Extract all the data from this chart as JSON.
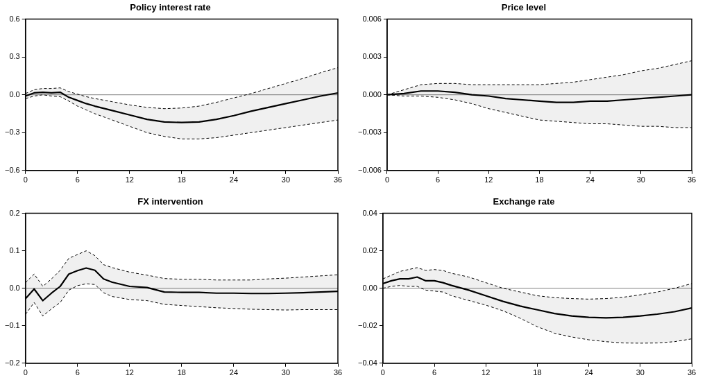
{
  "chart_data": [
    {
      "type": "line",
      "title": "Policy interest rate",
      "xlim": [
        0,
        36
      ],
      "xticks": [
        0,
        6,
        12,
        18,
        24,
        30,
        36
      ],
      "ylim": [
        -0.6,
        0.6
      ],
      "yticks": [
        {
          "value": -0.6,
          "label": "−0.6"
        },
        {
          "value": -0.3,
          "label": "−0.3"
        },
        {
          "value": 0,
          "label": "0.0"
        },
        0.3,
        0.6
      ],
      "grid": false,
      "legend": false,
      "ref_lines": [
        {
          "axis": "y",
          "value": 0,
          "color": "#808080"
        }
      ],
      "series": [
        {
          "color": "#000000",
          "line_style": "solid",
          "x": [
            0,
            1,
            2,
            3,
            4,
            5,
            6,
            7,
            8,
            10,
            12,
            14,
            16,
            18,
            20,
            22,
            24,
            26,
            28,
            30,
            32,
            34,
            36
          ],
          "values": [
            -0.01,
            0.015,
            0.02,
            0.015,
            0.02,
            -0.02,
            -0.045,
            -0.07,
            -0.09,
            -0.125,
            -0.16,
            -0.195,
            -0.215,
            -0.22,
            -0.215,
            -0.195,
            -0.165,
            -0.13,
            -0.1,
            -0.07,
            -0.04,
            -0.01,
            0.015
          ],
          "upper": [
            0.01,
            0.04,
            0.05,
            0.05,
            0.055,
            0.025,
            0.005,
            -0.015,
            -0.03,
            -0.055,
            -0.08,
            -0.1,
            -0.11,
            -0.105,
            -0.09,
            -0.06,
            -0.025,
            0.01,
            0.05,
            0.09,
            0.13,
            0.175,
            0.215
          ],
          "lower": [
            -0.03,
            -0.01,
            0,
            -0.01,
            -0.015,
            -0.05,
            -0.09,
            -0.12,
            -0.15,
            -0.2,
            -0.25,
            -0.3,
            -0.33,
            -0.35,
            -0.35,
            -0.34,
            -0.32,
            -0.3,
            -0.28,
            -0.26,
            -0.24,
            -0.22,
            -0.2
          ]
        },
        {
          "color": "#000000",
          "line_style": "dashed",
          "x": [
            0,
            1,
            2,
            3,
            4,
            5,
            6,
            7,
            8,
            10,
            12,
            14,
            16,
            18,
            20,
            22,
            24,
            26,
            28,
            30,
            32,
            34,
            36
          ],
          "values": [
            0.01,
            0.04,
            0.05,
            0.05,
            0.055,
            0.025,
            0.005,
            -0.015,
            -0.03,
            -0.055,
            -0.08,
            -0.1,
            -0.11,
            -0.105,
            -0.09,
            -0.06,
            -0.025,
            0.01,
            0.05,
            0.09,
            0.13,
            0.175,
            0.215
          ]
        },
        {
          "color": "#000000",
          "line_style": "dashed",
          "x": [
            0,
            1,
            2,
            3,
            4,
            5,
            6,
            7,
            8,
            10,
            12,
            14,
            16,
            18,
            20,
            22,
            24,
            26,
            28,
            30,
            32,
            34,
            36
          ],
          "values": [
            -0.03,
            -0.01,
            0,
            -0.01,
            -0.015,
            -0.05,
            -0.09,
            -0.12,
            -0.15,
            -0.2,
            -0.25,
            -0.3,
            -0.33,
            -0.35,
            -0.35,
            -0.34,
            -0.32,
            -0.3,
            -0.28,
            -0.26,
            -0.24,
            -0.22,
            -0.2
          ]
        }
      ]
    },
    {
      "type": "line",
      "title": "Price level",
      "xlim": [
        0,
        36
      ],
      "xticks": [
        0,
        6,
        12,
        18,
        24,
        30,
        36
      ],
      "ylim": [
        -0.006,
        0.006
      ],
      "yticks": [
        {
          "value": -0.006,
          "label": "−0.006"
        },
        {
          "value": -0.003,
          "label": "−0.003"
        },
        {
          "value": 0,
          "label": "0.000"
        },
        0.003,
        0.006
      ],
      "grid": false,
      "legend": false,
      "ref_lines": [
        {
          "axis": "y",
          "value": 0,
          "color": "#808080"
        }
      ],
      "series": [
        {
          "color": "#000000",
          "line_style": "solid",
          "x": [
            0,
            2,
            4,
            6,
            8,
            10,
            12,
            14,
            16,
            18,
            20,
            22,
            24,
            26,
            28,
            30,
            32,
            34,
            36
          ],
          "values": [
            0,
            0.0001,
            0.0003,
            0.0003,
            0.0002,
            0,
            -0.0001,
            -0.0003,
            -0.0004,
            -0.0005,
            -0.0006,
            -0.0006,
            -0.0005,
            -0.0005,
            -0.0004,
            -0.0003,
            -0.0002,
            -0.0001,
            0
          ],
          "upper": [
            0,
            0.0004,
            0.0008,
            0.0009,
            0.0009,
            0.0008,
            0.0008,
            0.0008,
            0.0008,
            0.0008,
            0.0009,
            0.001,
            0.0012,
            0.0014,
            0.0016,
            0.0019,
            0.0021,
            0.0024,
            0.0027
          ],
          "lower": [
            0,
            -0.0001,
            -0.0001,
            -0.0002,
            -0.0004,
            -0.0007,
            -0.0011,
            -0.0014,
            -0.0017,
            -0.002,
            -0.0021,
            -0.0022,
            -0.0023,
            -0.0023,
            -0.0024,
            -0.0025,
            -0.0025,
            -0.0026,
            -0.0026
          ]
        },
        {
          "color": "#000000",
          "line_style": "dashed",
          "x": [
            0,
            2,
            4,
            6,
            8,
            10,
            12,
            14,
            16,
            18,
            20,
            22,
            24,
            26,
            28,
            30,
            32,
            34,
            36
          ],
          "values": [
            0,
            0.0004,
            0.0008,
            0.0009,
            0.0009,
            0.0008,
            0.0008,
            0.0008,
            0.0008,
            0.0008,
            0.0009,
            0.001,
            0.0012,
            0.0014,
            0.0016,
            0.0019,
            0.0021,
            0.0024,
            0.0027
          ]
        },
        {
          "color": "#000000",
          "line_style": "dashed",
          "x": [
            0,
            2,
            4,
            6,
            8,
            10,
            12,
            14,
            16,
            18,
            20,
            22,
            24,
            26,
            28,
            30,
            32,
            34,
            36
          ],
          "values": [
            0,
            -0.0001,
            -0.0001,
            -0.0002,
            -0.0004,
            -0.0007,
            -0.0011,
            -0.0014,
            -0.0017,
            -0.002,
            -0.0021,
            -0.0022,
            -0.0023,
            -0.0023,
            -0.0024,
            -0.0025,
            -0.0025,
            -0.0026,
            -0.0026
          ]
        }
      ]
    },
    {
      "type": "line",
      "title": "FX intervention",
      "xlim": [
        0,
        36
      ],
      "xticks": [
        0,
        6,
        12,
        18,
        24,
        30,
        36
      ],
      "ylim": [
        -0.2,
        0.2
      ],
      "yticks": [
        {
          "value": -0.2,
          "label": "−0.2"
        },
        {
          "value": -0.1,
          "label": "−0.1"
        },
        {
          "value": 0,
          "label": "0.0"
        },
        0.1,
        0.2
      ],
      "grid": false,
      "legend": false,
      "ref_lines": [
        {
          "axis": "y",
          "value": 0,
          "color": "#808080"
        }
      ],
      "series": [
        {
          "color": "#000000",
          "line_style": "solid",
          "x": [
            0,
            1,
            2,
            3,
            4,
            5,
            6,
            7,
            8,
            9,
            10,
            12,
            14,
            16,
            18,
            20,
            22,
            24,
            26,
            28,
            30,
            32,
            34,
            36
          ],
          "values": [
            -0.028,
            -0.002,
            -0.033,
            -0.013,
            0.005,
            0.038,
            0.047,
            0.054,
            0.048,
            0.025,
            0.016,
            0.005,
            0.002,
            -0.01,
            -0.011,
            -0.011,
            -0.013,
            -0.013,
            -0.014,
            -0.014,
            -0.013,
            -0.012,
            -0.01,
            -0.008
          ],
          "upper": [
            0.015,
            0.038,
            0.005,
            0.025,
            0.048,
            0.08,
            0.09,
            0.1,
            0.087,
            0.063,
            0.055,
            0.043,
            0.035,
            0.026,
            0.024,
            0.024,
            0.022,
            0.022,
            0.022,
            0.025,
            0.027,
            0.03,
            0.033,
            0.036
          ],
          "lower": [
            -0.07,
            -0.038,
            -0.074,
            -0.055,
            -0.038,
            -0.005,
            0.007,
            0.012,
            0.01,
            -0.012,
            -0.022,
            -0.03,
            -0.033,
            -0.043,
            -0.046,
            -0.049,
            -0.052,
            -0.054,
            -0.056,
            -0.057,
            -0.058,
            -0.057,
            -0.057,
            -0.057
          ]
        },
        {
          "color": "#000000",
          "line_style": "dashed",
          "x": [
            0,
            1,
            2,
            3,
            4,
            5,
            6,
            7,
            8,
            9,
            10,
            12,
            14,
            16,
            18,
            20,
            22,
            24,
            26,
            28,
            30,
            32,
            34,
            36
          ],
          "values": [
            0.015,
            0.038,
            0.005,
            0.025,
            0.048,
            0.08,
            0.09,
            0.1,
            0.087,
            0.063,
            0.055,
            0.043,
            0.035,
            0.026,
            0.024,
            0.024,
            0.022,
            0.022,
            0.022,
            0.025,
            0.027,
            0.03,
            0.033,
            0.036
          ]
        },
        {
          "color": "#000000",
          "line_style": "dashed",
          "x": [
            0,
            1,
            2,
            3,
            4,
            5,
            6,
            7,
            8,
            9,
            10,
            12,
            14,
            16,
            18,
            20,
            22,
            24,
            26,
            28,
            30,
            32,
            34,
            36
          ],
          "values": [
            -0.07,
            -0.038,
            -0.074,
            -0.055,
            -0.038,
            -0.005,
            0.007,
            0.012,
            0.01,
            -0.012,
            -0.022,
            -0.03,
            -0.033,
            -0.043,
            -0.046,
            -0.049,
            -0.052,
            -0.054,
            -0.056,
            -0.057,
            -0.058,
            -0.057,
            -0.057,
            -0.057
          ]
        }
      ]
    },
    {
      "type": "line",
      "title": "Exchange rate",
      "xlim": [
        0,
        36
      ],
      "xticks": [
        0,
        6,
        12,
        18,
        24,
        30,
        36
      ],
      "ylim": [
        -0.04,
        0.04
      ],
      "yticks": [
        {
          "value": -0.04,
          "label": "−0.04"
        },
        {
          "value": -0.02,
          "label": "−0.02"
        },
        {
          "value": 0,
          "label": "0.00"
        },
        0.02,
        0.04
      ],
      "grid": false,
      "legend": false,
      "ref_lines": [
        {
          "axis": "y",
          "value": 0,
          "color": "#808080"
        }
      ],
      "series": [
        {
          "color": "#000000",
          "line_style": "solid",
          "x": [
            0,
            1,
            2,
            3,
            4,
            5,
            6,
            7,
            8,
            10,
            12,
            14,
            16,
            18,
            20,
            22,
            24,
            26,
            28,
            30,
            32,
            34,
            36
          ],
          "values": [
            0.0025,
            0.004,
            0.005,
            0.005,
            0.006,
            0.004,
            0.004,
            0.003,
            0.0015,
            -0.001,
            -0.004,
            -0.007,
            -0.0095,
            -0.0115,
            -0.0135,
            -0.0148,
            -0.0155,
            -0.0158,
            -0.0155,
            -0.0148,
            -0.0138,
            -0.0125,
            -0.0105
          ],
          "upper": [
            0.005,
            0.007,
            0.009,
            0.01,
            0.011,
            0.0095,
            0.01,
            0.0095,
            0.008,
            0.006,
            0.003,
            0,
            -0.002,
            -0.004,
            -0.005,
            -0.0055,
            -0.0058,
            -0.0055,
            -0.0048,
            -0.0035,
            -0.002,
            0,
            0.0025
          ],
          "lower": [
            0,
            0.001,
            0.0015,
            0.001,
            0.001,
            -0.001,
            -0.0015,
            -0.002,
            -0.004,
            -0.0065,
            -0.009,
            -0.012,
            -0.016,
            -0.0205,
            -0.024,
            -0.026,
            -0.0275,
            -0.0285,
            -0.0292,
            -0.0293,
            -0.0292,
            -0.0285,
            -0.027
          ]
        },
        {
          "color": "#000000",
          "line_style": "dashed",
          "x": [
            0,
            1,
            2,
            3,
            4,
            5,
            6,
            7,
            8,
            10,
            12,
            14,
            16,
            18,
            20,
            22,
            24,
            26,
            28,
            30,
            32,
            34,
            36
          ],
          "values": [
            0.005,
            0.007,
            0.009,
            0.01,
            0.011,
            0.0095,
            0.01,
            0.0095,
            0.008,
            0.006,
            0.003,
            0,
            -0.002,
            -0.004,
            -0.005,
            -0.0055,
            -0.0058,
            -0.0055,
            -0.0048,
            -0.0035,
            -0.002,
            0,
            0.0025
          ]
        },
        {
          "color": "#000000",
          "line_style": "dashed",
          "x": [
            0,
            1,
            2,
            3,
            4,
            5,
            6,
            7,
            8,
            10,
            12,
            14,
            16,
            18,
            20,
            22,
            24,
            26,
            28,
            30,
            32,
            34,
            36
          ],
          "values": [
            0,
            0.001,
            0.0015,
            0.001,
            0.001,
            -0.001,
            -0.0015,
            -0.002,
            -0.004,
            -0.0065,
            -0.009,
            -0.012,
            -0.016,
            -0.0205,
            -0.024,
            -0.026,
            -0.0275,
            -0.0285,
            -0.0292,
            -0.0293,
            -0.0292,
            -0.0285,
            -0.027
          ]
        }
      ]
    }
  ]
}
